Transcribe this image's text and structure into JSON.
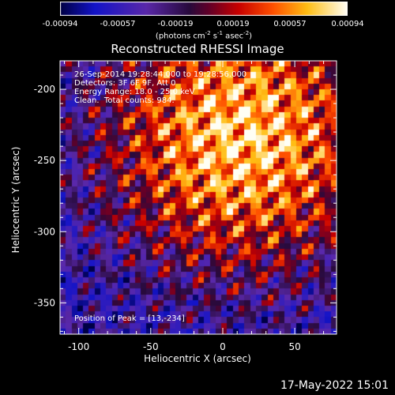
{
  "colorbar": {
    "ticks": [
      "-0.00094",
      "-0.00057",
      "-0.00019",
      "0.00019",
      "0.00057",
      "0.00094"
    ],
    "unit_main": "(photons cm",
    "unit_exp1": "-2",
    "unit_mid1": " s",
    "unit_exp2": "-1",
    "unit_mid2": " asec",
    "unit_exp3": "-2",
    "unit_end": ")"
  },
  "annotations": {
    "line1": "26-Sep-2014 19:28:44.000 to 19:28:56.000",
    "line2": "Detectors: 3F 6F 9F, Att 0",
    "line3": "Energy Range: 18.0 - 25.0 keV",
    "line4": "Clean.  Total counts: 984.",
    "peak": "Position of Peak = [13,-234]"
  },
  "footer": {
    "timestamp": "17-May-2022 15:01"
  },
  "chart_data": {
    "type": "heatmap",
    "title": "Reconstructed RHESSI Image",
    "xlabel": "Heliocentric X (arcsec)",
    "ylabel": "Heliocentric Y (arcsec)",
    "xlim": [
      -113,
      79
    ],
    "ylim": [
      -372,
      -180
    ],
    "xticks": [
      -100,
      -50,
      0,
      50
    ],
    "yticks": [
      -200,
      -250,
      -300,
      -350
    ],
    "colorscale": "RHESSI (blue-purple-red-yellow-white)",
    "value_range": [
      -0.00094,
      0.00094
    ],
    "peak": [
      13,
      -234
    ]
  }
}
